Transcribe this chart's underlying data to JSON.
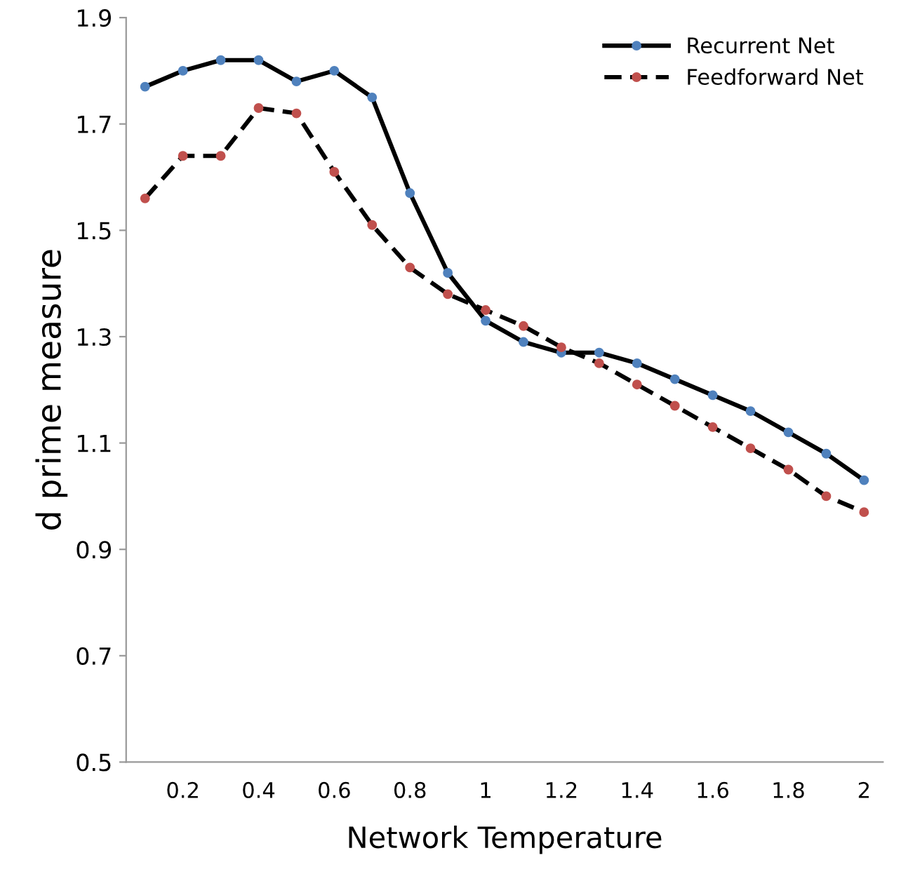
{
  "chart_data": {
    "type": "line",
    "xlabel": "Network Temperature",
    "ylabel": "d prime measure",
    "categories": [
      null,
      "0.2",
      null,
      "0.4",
      null,
      "0.6",
      null,
      "0.8",
      null,
      "1",
      null,
      "1.2",
      null,
      "1.4",
      null,
      "1.6",
      null,
      "1.8",
      null,
      "2"
    ],
    "ylim": [
      0.5,
      1.9
    ],
    "yticks": [
      0.5,
      0.7,
      0.9,
      1.1,
      1.3,
      1.5,
      1.7,
      1.9
    ],
    "grid": false,
    "legend": "top right",
    "marker": "circle",
    "series": [
      {
        "name": "Recurrent Net",
        "color": "#4f81bd",
        "line_style": "solid",
        "values": [
          1.77,
          1.8,
          1.82,
          1.82,
          1.78,
          1.8,
          1.75,
          1.57,
          1.42,
          1.33,
          1.29,
          1.27,
          1.27,
          1.25,
          1.22,
          1.19,
          1.16,
          1.12,
          1.08,
          1.03
        ]
      },
      {
        "name": "Feedforward Net",
        "color": "#c0504d",
        "line_style": "dashed",
        "values": [
          1.56,
          1.64,
          1.64,
          1.73,
          1.72,
          1.61,
          1.51,
          1.43,
          1.38,
          1.35,
          1.32,
          1.28,
          1.25,
          1.21,
          1.17,
          1.13,
          1.09,
          1.05,
          1.0,
          0.97
        ]
      }
    ]
  }
}
